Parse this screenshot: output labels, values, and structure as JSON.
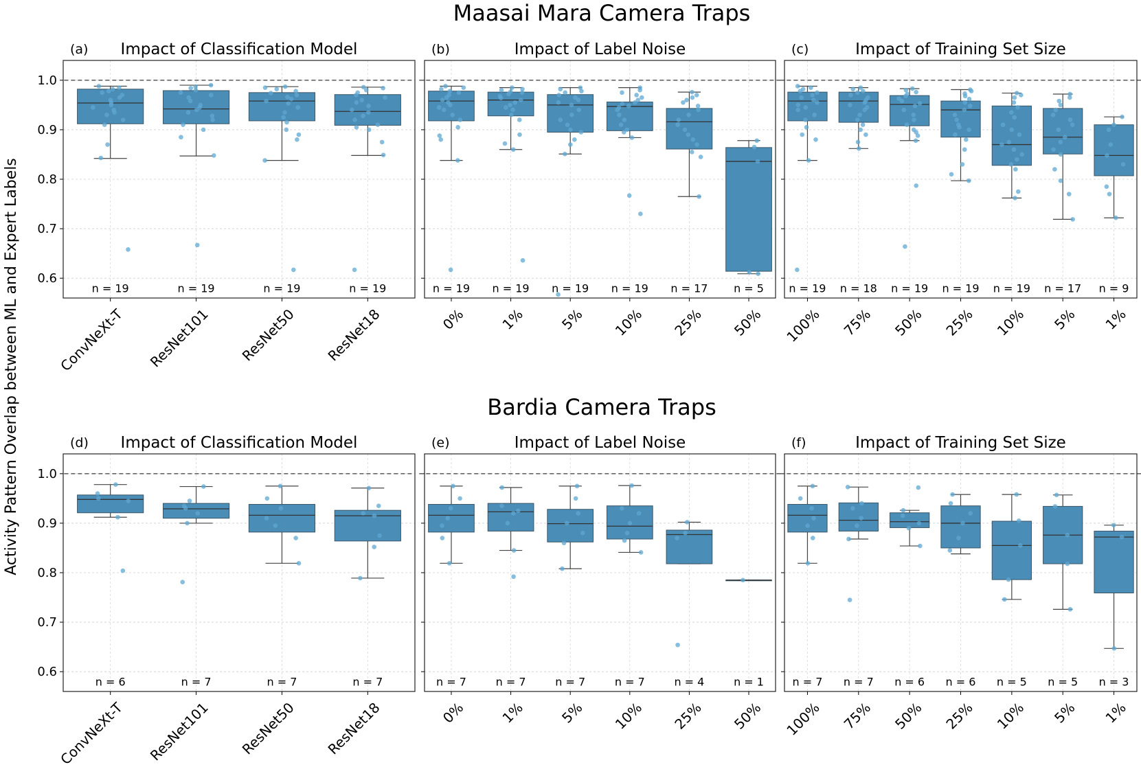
{
  "figure": {
    "ylabel": "Activity Pattern Overlap between ML and Expert Labels",
    "row_titles": [
      "Maasai Mara Camera Traps",
      "Bardia Camera Traps"
    ],
    "box_color": "#4a8db7",
    "point_color": "#5fa8d3",
    "yticks": [
      "0.6",
      "0.7",
      "0.8",
      "0.9",
      "1.0"
    ],
    "reference_line": 1.0
  },
  "chart_data": [
    {
      "type": "box",
      "letter": "(a)",
      "title": "Impact of Classification Model",
      "row": 0,
      "col": 0,
      "ylim": [
        0.56,
        1.04
      ],
      "grid": true,
      "categories": [
        "ConvNeXt-T",
        "ResNet101",
        "ResNet50",
        "ResNet18"
      ],
      "n_labels": [
        "n = 19",
        "n = 19",
        "n = 19",
        "n = 19"
      ],
      "boxes": [
        {
          "q1": 0.912,
          "median": 0.954,
          "q3": 0.982,
          "wlo": 0.842,
          "whi": 0.988
        },
        {
          "q1": 0.912,
          "median": 0.942,
          "q3": 0.979,
          "wlo": 0.847,
          "whi": 0.99
        },
        {
          "q1": 0.918,
          "median": 0.958,
          "q3": 0.975,
          "wlo": 0.838,
          "whi": 0.987
        },
        {
          "q1": 0.909,
          "median": 0.937,
          "q3": 0.971,
          "wlo": 0.848,
          "whi": 0.986
        }
      ],
      "points": [
        [
          0.988,
          0.985,
          0.982,
          0.978,
          0.975,
          0.97,
          0.965,
          0.96,
          0.955,
          0.95,
          0.945,
          0.94,
          0.935,
          0.93,
          0.92,
          0.91,
          0.87,
          0.843,
          0.658
        ],
        [
          0.99,
          0.987,
          0.984,
          0.98,
          0.975,
          0.97,
          0.965,
          0.958,
          0.95,
          0.945,
          0.94,
          0.935,
          0.928,
          0.92,
          0.91,
          0.9,
          0.885,
          0.848,
          0.667
        ],
        [
          0.987,
          0.985,
          0.982,
          0.978,
          0.974,
          0.97,
          0.966,
          0.962,
          0.958,
          0.953,
          0.945,
          0.935,
          0.925,
          0.915,
          0.9,
          0.89,
          0.88,
          0.838,
          0.617
        ],
        [
          0.986,
          0.984,
          0.98,
          0.975,
          0.97,
          0.965,
          0.96,
          0.955,
          0.948,
          0.94,
          0.935,
          0.928,
          0.92,
          0.91,
          0.905,
          0.9,
          0.875,
          0.849,
          0.617
        ]
      ]
    },
    {
      "type": "box",
      "letter": "(b)",
      "title": "Impact of Label Noise",
      "row": 0,
      "col": 1,
      "ylim": [
        0.56,
        1.04
      ],
      "grid": true,
      "categories": [
        "0%",
        "1%",
        "5%",
        "10%",
        "25%",
        "50%"
      ],
      "n_labels": [
        "n = 19",
        "n = 19",
        "n = 19",
        "n = 19",
        "n = 17",
        "n = 5"
      ],
      "boxes": [
        {
          "q1": 0.918,
          "median": 0.958,
          "q3": 0.978,
          "wlo": 0.838,
          "whi": 0.988
        },
        {
          "q1": 0.928,
          "median": 0.96,
          "q3": 0.976,
          "wlo": 0.86,
          "whi": 0.985
        },
        {
          "q1": 0.895,
          "median": 0.95,
          "q3": 0.971,
          "wlo": 0.851,
          "whi": 0.985
        },
        {
          "q1": 0.898,
          "median": 0.947,
          "q3": 0.956,
          "wlo": 0.884,
          "whi": 0.985
        },
        {
          "q1": 0.861,
          "median": 0.916,
          "q3": 0.943,
          "wlo": 0.765,
          "whi": 0.976
        },
        {
          "q1": 0.614,
          "median": 0.836,
          "q3": 0.864,
          "wlo": 0.609,
          "whi": 0.878
        }
      ],
      "points": [
        [
          0.988,
          0.985,
          0.982,
          0.978,
          0.975,
          0.97,
          0.965,
          0.96,
          0.955,
          0.95,
          0.945,
          0.94,
          0.93,
          0.92,
          0.905,
          0.888,
          0.88,
          0.838,
          0.617
        ],
        [
          0.985,
          0.982,
          0.98,
          0.977,
          0.975,
          0.972,
          0.968,
          0.964,
          0.96,
          0.955,
          0.95,
          0.945,
          0.94,
          0.93,
          0.92,
          0.89,
          0.872,
          0.86,
          0.636
        ],
        [
          0.985,
          0.982,
          0.978,
          0.975,
          0.97,
          0.965,
          0.96,
          0.955,
          0.95,
          0.94,
          0.93,
          0.92,
          0.91,
          0.9,
          0.895,
          0.88,
          0.87,
          0.851,
          0.567
        ],
        [
          0.985,
          0.98,
          0.975,
          0.97,
          0.965,
          0.96,
          0.955,
          0.952,
          0.948,
          0.945,
          0.94,
          0.93,
          0.92,
          0.91,
          0.9,
          0.895,
          0.884,
          0.767,
          0.73
        ],
        [
          0.976,
          0.97,
          0.965,
          0.96,
          0.955,
          0.948,
          0.94,
          0.93,
          0.92,
          0.91,
          0.9,
          0.89,
          0.88,
          0.87,
          0.855,
          0.845,
          0.765
        ],
        [
          0.878,
          0.865,
          0.836,
          0.612,
          0.609
        ]
      ]
    },
    {
      "type": "box",
      "letter": "(c)",
      "title": "Impact of Training Set Size",
      "row": 0,
      "col": 2,
      "ylim": [
        0.56,
        1.04
      ],
      "grid": true,
      "categories": [
        "100%",
        "75%",
        "50%",
        "25%",
        "10%",
        "5%",
        "1%"
      ],
      "n_labels": [
        "n = 19",
        "n = 18",
        "n = 19",
        "n = 19",
        "n = 19",
        "n = 17",
        "n = 9"
      ],
      "boxes": [
        {
          "q1": 0.918,
          "median": 0.958,
          "q3": 0.976,
          "wlo": 0.838,
          "whi": 0.988
        },
        {
          "q1": 0.915,
          "median": 0.958,
          "q3": 0.976,
          "wlo": 0.862,
          "whi": 0.985
        },
        {
          "q1": 0.908,
          "median": 0.951,
          "q3": 0.969,
          "wlo": 0.878,
          "whi": 0.983
        },
        {
          "q1": 0.885,
          "median": 0.94,
          "q3": 0.958,
          "wlo": 0.797,
          "whi": 0.981
        },
        {
          "q1": 0.828,
          "median": 0.87,
          "q3": 0.948,
          "wlo": 0.762,
          "whi": 0.974
        },
        {
          "q1": 0.851,
          "median": 0.885,
          "q3": 0.943,
          "wlo": 0.719,
          "whi": 0.972
        },
        {
          "q1": 0.807,
          "median": 0.848,
          "q3": 0.91,
          "wlo": 0.722,
          "whi": 0.926
        }
      ],
      "points": [
        [
          0.988,
          0.985,
          0.982,
          0.978,
          0.975,
          0.97,
          0.965,
          0.96,
          0.955,
          0.95,
          0.945,
          0.94,
          0.93,
          0.92,
          0.905,
          0.89,
          0.88,
          0.838,
          0.617
        ],
        [
          0.985,
          0.982,
          0.978,
          0.975,
          0.97,
          0.965,
          0.96,
          0.955,
          0.95,
          0.945,
          0.94,
          0.93,
          0.92,
          0.91,
          0.9,
          0.89,
          0.875,
          0.862
        ],
        [
          0.983,
          0.98,
          0.976,
          0.972,
          0.968,
          0.963,
          0.958,
          0.953,
          0.948,
          0.94,
          0.93,
          0.92,
          0.91,
          0.9,
          0.895,
          0.888,
          0.878,
          0.787,
          0.664
        ],
        [
          0.981,
          0.978,
          0.973,
          0.968,
          0.962,
          0.955,
          0.948,
          0.94,
          0.93,
          0.92,
          0.91,
          0.905,
          0.9,
          0.89,
          0.88,
          0.86,
          0.83,
          0.81,
          0.797
        ],
        [
          0.974,
          0.97,
          0.965,
          0.955,
          0.945,
          0.935,
          0.925,
          0.91,
          0.9,
          0.89,
          0.875,
          0.87,
          0.86,
          0.85,
          0.84,
          0.83,
          0.82,
          0.775,
          0.762
        ],
        [
          0.972,
          0.965,
          0.958,
          0.95,
          0.94,
          0.93,
          0.92,
          0.91,
          0.9,
          0.885,
          0.875,
          0.86,
          0.85,
          0.82,
          0.797,
          0.77,
          0.719
        ],
        [
          0.926,
          0.91,
          0.9,
          0.87,
          0.848,
          0.83,
          0.785,
          0.77,
          0.722
        ]
      ]
    },
    {
      "type": "box",
      "letter": "(d)",
      "title": "Impact of Classification Model",
      "row": 1,
      "col": 0,
      "ylim": [
        0.56,
        1.04
      ],
      "grid": true,
      "categories": [
        "ConvNeXt-T",
        "ResNet101",
        "ResNet50",
        "ResNet18"
      ],
      "n_labels": [
        "n = 6",
        "n = 7",
        "n = 7",
        "n = 7"
      ],
      "boxes": [
        {
          "q1": 0.921,
          "median": 0.948,
          "q3": 0.957,
          "wlo": 0.912,
          "whi": 0.978
        },
        {
          "q1": 0.91,
          "median": 0.929,
          "q3": 0.94,
          "wlo": 0.9,
          "whi": 0.974
        },
        {
          "q1": 0.882,
          "median": 0.916,
          "q3": 0.938,
          "wlo": 0.819,
          "whi": 0.975
        },
        {
          "q1": 0.864,
          "median": 0.915,
          "q3": 0.926,
          "wlo": 0.789,
          "whi": 0.971
        }
      ],
      "points": [
        [
          0.978,
          0.96,
          0.95,
          0.945,
          0.912,
          0.804
        ],
        [
          0.974,
          0.945,
          0.935,
          0.93,
          0.92,
          0.9,
          0.781
        ],
        [
          0.975,
          0.95,
          0.93,
          0.91,
          0.895,
          0.87,
          0.819
        ],
        [
          0.971,
          0.935,
          0.92,
          0.915,
          0.875,
          0.852,
          0.789
        ]
      ]
    },
    {
      "type": "box",
      "letter": "(e)",
      "title": "Impact of Label Noise",
      "row": 1,
      "col": 1,
      "ylim": [
        0.56,
        1.04
      ],
      "grid": true,
      "categories": [
        "0%",
        "1%",
        "5%",
        "10%",
        "25%",
        "50%"
      ],
      "n_labels": [
        "n = 7",
        "n = 7",
        "n = 7",
        "n = 7",
        "n = 4",
        "n = 1"
      ],
      "boxes": [
        {
          "q1": 0.882,
          "median": 0.916,
          "q3": 0.938,
          "wlo": 0.819,
          "whi": 0.975
        },
        {
          "q1": 0.884,
          "median": 0.923,
          "q3": 0.94,
          "wlo": 0.845,
          "whi": 0.972
        },
        {
          "q1": 0.862,
          "median": 0.899,
          "q3": 0.928,
          "wlo": 0.808,
          "whi": 0.975
        },
        {
          "q1": 0.868,
          "median": 0.894,
          "q3": 0.935,
          "wlo": 0.841,
          "whi": 0.976
        },
        {
          "q1": 0.818,
          "median": 0.877,
          "q3": 0.886,
          "wlo": 0.818,
          "whi": 0.902
        },
        {
          "q1": 0.785,
          "median": 0.785,
          "q3": 0.785,
          "wlo": 0.785,
          "whi": 0.785
        }
      ],
      "points": [
        [
          0.975,
          0.95,
          0.93,
          0.91,
          0.895,
          0.87,
          0.819
        ],
        [
          0.972,
          0.935,
          0.925,
          0.92,
          0.9,
          0.845,
          0.792
        ],
        [
          0.975,
          0.95,
          0.92,
          0.9,
          0.88,
          0.86,
          0.808
        ],
        [
          0.976,
          0.93,
          0.92,
          0.9,
          0.88,
          0.865,
          0.841
        ],
        [
          0.902,
          0.88,
          0.87,
          0.654
        ],
        [
          0.785
        ]
      ]
    },
    {
      "type": "box",
      "letter": "(f)",
      "title": "Impact of Training Set Size",
      "row": 1,
      "col": 2,
      "ylim": [
        0.56,
        1.04
      ],
      "grid": true,
      "categories": [
        "100%",
        "75%",
        "50%",
        "25%",
        "10%",
        "5%",
        "1%"
      ],
      "n_labels": [
        "n = 7",
        "n = 7",
        "n = 6",
        "n = 6",
        "n = 5",
        "n = 5",
        "n = 3"
      ],
      "boxes": [
        {
          "q1": 0.882,
          "median": 0.916,
          "q3": 0.938,
          "wlo": 0.819,
          "whi": 0.975
        },
        {
          "q1": 0.884,
          "median": 0.906,
          "q3": 0.941,
          "wlo": 0.868,
          "whi": 0.973
        },
        {
          "q1": 0.891,
          "median": 0.903,
          "q3": 0.921,
          "wlo": 0.854,
          "whi": 0.926
        },
        {
          "q1": 0.85,
          "median": 0.9,
          "q3": 0.935,
          "wlo": 0.838,
          "whi": 0.958
        },
        {
          "q1": 0.786,
          "median": 0.855,
          "q3": 0.904,
          "wlo": 0.746,
          "whi": 0.958
        },
        {
          "q1": 0.818,
          "median": 0.876,
          "q3": 0.934,
          "wlo": 0.726,
          "whi": 0.957
        },
        {
          "q1": 0.759,
          "median": 0.872,
          "q3": 0.884,
          "wlo": 0.647,
          "whi": 0.896
        }
      ],
      "points": [
        [
          0.975,
          0.95,
          0.93,
          0.91,
          0.895,
          0.87,
          0.819
        ],
        [
          0.973,
          0.94,
          0.93,
          0.91,
          0.895,
          0.868,
          0.745
        ],
        [
          0.972,
          0.926,
          0.915,
          0.9,
          0.89,
          0.854
        ],
        [
          0.958,
          0.94,
          0.92,
          0.9,
          0.87,
          0.845
        ],
        [
          0.958,
          0.905,
          0.855,
          0.786,
          0.746
        ],
        [
          0.957,
          0.934,
          0.876,
          0.818,
          0.726
        ],
        [
          0.896,
          0.872,
          0.647
        ]
      ]
    }
  ]
}
